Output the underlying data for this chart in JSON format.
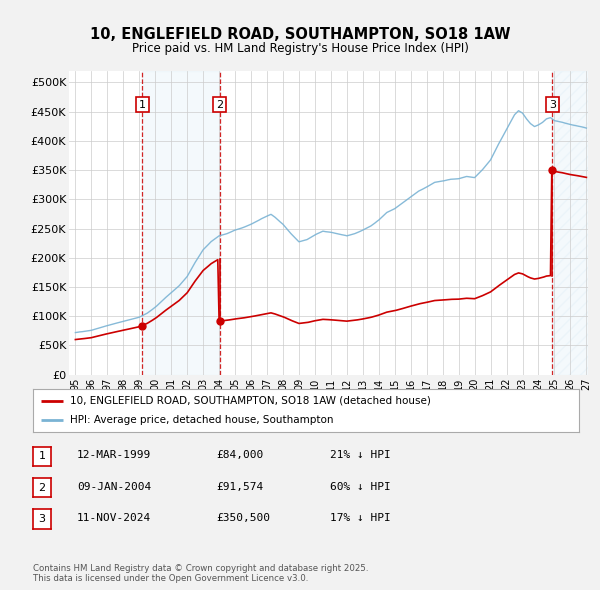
{
  "title": "10, ENGLEFIELD ROAD, SOUTHAMPTON, SO18 1AW",
  "subtitle": "Price paid vs. HM Land Registry's House Price Index (HPI)",
  "bg_color": "#f2f2f2",
  "plot_bg_color": "#ffffff",
  "grid_color": "#cccccc",
  "hpi_color": "#7ab3d4",
  "price_color": "#cc0000",
  "dashed_color": "#cc0000",
  "ylim": [
    0,
    520000
  ],
  "yticks": [
    0,
    50000,
    100000,
    150000,
    200000,
    250000,
    300000,
    350000,
    400000,
    450000,
    500000
  ],
  "ytick_labels": [
    "£0",
    "£50K",
    "£100K",
    "£150K",
    "£200K",
    "£250K",
    "£300K",
    "£350K",
    "£400K",
    "£450K",
    "£500K"
  ],
  "sale_years": [
    1999.19,
    2004.03,
    2024.86
  ],
  "sale_prices": [
    84000,
    91574,
    350500
  ],
  "sale_labels": [
    "1",
    "2",
    "3"
  ],
  "legend_price_label": "10, ENGLEFIELD ROAD, SOUTHAMPTON, SO18 1AW (detached house)",
  "legend_hpi_label": "HPI: Average price, detached house, Southampton",
  "table_rows": [
    {
      "label": "1",
      "date": "12-MAR-1999",
      "price": "£84,000",
      "pct": "21% ↓ HPI"
    },
    {
      "label": "2",
      "date": "09-JAN-2004",
      "price": "£91,574",
      "pct": "60% ↓ HPI"
    },
    {
      "label": "3",
      "date": "11-NOV-2024",
      "price": "£350,500",
      "pct": "17% ↓ HPI"
    }
  ],
  "footer": "Contains HM Land Registry data © Crown copyright and database right 2025.\nThis data is licensed under the Open Government Licence v3.0."
}
